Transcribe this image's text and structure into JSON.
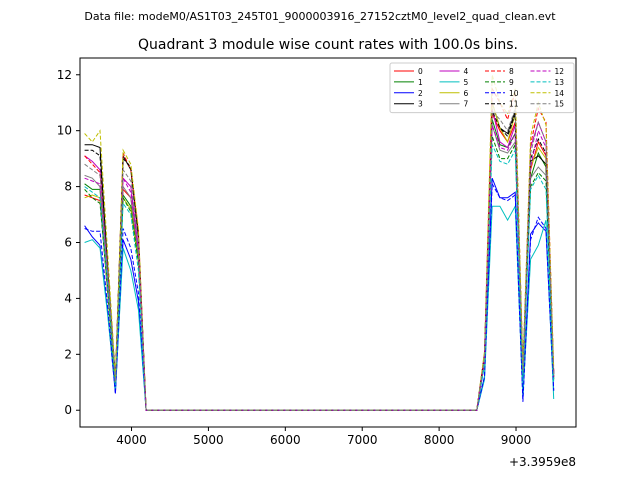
{
  "chart_data": {
    "type": "line",
    "suptitle": "Data file: modeM0/AS1T03_245T01_9000003916_27152cztM0_level2_quad_clean.evt",
    "title": "Quadrant 3 module wise count rates with 100.0s bins.",
    "xlabel": "",
    "ylabel": "",
    "x_offset_label": "+3.3959e8",
    "xlim": [
      3330,
      9780
    ],
    "ylim": [
      -0.6,
      12.6
    ],
    "x_ticks": [
      4000,
      5000,
      6000,
      7000,
      8000,
      9000
    ],
    "x_tick_labels": [
      "4000",
      "5000",
      "6000",
      "7000",
      "8000",
      "9000"
    ],
    "y_ticks": [
      0,
      2,
      4,
      6,
      8,
      10,
      12
    ],
    "y_tick_labels": [
      "0",
      "2",
      "4",
      "6",
      "8",
      "10",
      "12"
    ],
    "legend_position": "top-right",
    "legend_columns": 4,
    "x": [
      3390,
      3490,
      3590,
      3690,
      3790,
      3890,
      3990,
      4090,
      4190,
      4290,
      8490,
      8590,
      8690,
      8790,
      8890,
      8990,
      9090,
      9190,
      9290,
      9390,
      9490
    ],
    "series": [
      {
        "name": "0",
        "color": "#ff0000",
        "dash": "solid",
        "values": [
          7.7,
          7.6,
          7.5,
          4.2,
          0.9,
          7.9,
          7.6,
          5.5,
          0,
          0,
          0,
          1.8,
          10.6,
          10.0,
          9.6,
          10.3,
          1.3,
          8.6,
          9.6,
          9.1,
          1.2
        ]
      },
      {
        "name": "1",
        "color": "#008000",
        "dash": "solid",
        "values": [
          8.1,
          7.9,
          7.9,
          4.5,
          0.9,
          7.7,
          7.3,
          5.4,
          0,
          0,
          0,
          1.7,
          10.4,
          9.5,
          9.4,
          9.9,
          1.2,
          8.3,
          9.2,
          8.7,
          1.1
        ]
      },
      {
        "name": "2",
        "color": "#0000ff",
        "dash": "solid",
        "values": [
          6.6,
          6.2,
          5.9,
          3.5,
          0.6,
          6.1,
          5.4,
          3.9,
          0,
          0,
          0,
          1.2,
          8.3,
          7.6,
          7.6,
          7.8,
          0.4,
          6.3,
          6.7,
          6.4,
          0.7
        ]
      },
      {
        "name": "3",
        "color": "#000000",
        "dash": "solid",
        "values": [
          9.5,
          9.5,
          9.4,
          5.1,
          1.1,
          9.1,
          8.6,
          6.2,
          0,
          0,
          0,
          2.0,
          11.0,
          10.1,
          9.9,
          10.7,
          1.4,
          8.9,
          9.1,
          8.8,
          1.3
        ]
      },
      {
        "name": "4",
        "color": "#bf00bf",
        "dash": "solid",
        "values": [
          9.1,
          8.9,
          8.6,
          4.9,
          1.1,
          8.3,
          8.0,
          5.8,
          0,
          0,
          0,
          1.8,
          10.8,
          9.6,
          9.4,
          10.2,
          1.3,
          9.4,
          10.3,
          9.6,
          1.3
        ]
      },
      {
        "name": "5",
        "color": "#00bfbf",
        "dash": "solid",
        "values": [
          6.0,
          6.1,
          5.8,
          3.4,
          0.7,
          5.8,
          5.0,
          3.6,
          0,
          0,
          0,
          1.1,
          7.3,
          7.3,
          6.8,
          7.3,
          0.5,
          5.4,
          5.9,
          6.8,
          0.4
        ]
      },
      {
        "name": "6",
        "color": "#bfbf00",
        "dash": "solid",
        "values": [
          7.6,
          7.7,
          7.6,
          4.3,
          0.9,
          7.6,
          7.2,
          5.3,
          0,
          0,
          0,
          1.7,
          11.0,
          10.1,
          9.6,
          10.6,
          1.3,
          8.7,
          9.4,
          9.0,
          1.2
        ]
      },
      {
        "name": "7",
        "color": "#808080",
        "dash": "solid",
        "values": [
          8.4,
          8.3,
          8.0,
          4.7,
          1.0,
          8.0,
          7.6,
          5.6,
          0,
          0,
          0,
          1.8,
          10.2,
          9.3,
          9.2,
          9.6,
          1.2,
          8.3,
          8.7,
          8.4,
          1.2
        ]
      },
      {
        "name": "8",
        "color": "#ff0000",
        "dash": "dashed",
        "values": [
          9.1,
          8.8,
          8.5,
          5.0,
          1.1,
          9.2,
          8.6,
          6.4,
          0,
          0,
          0,
          2.0,
          11.5,
          11.0,
          10.4,
          11.4,
          1.5,
          9.5,
          10.8,
          10.3,
          1.4
        ]
      },
      {
        "name": "9",
        "color": "#008000",
        "dash": "dashed",
        "values": [
          7.9,
          7.6,
          7.4,
          4.3,
          0.9,
          7.6,
          7.1,
          5.3,
          0,
          0,
          0,
          1.7,
          9.8,
          9.0,
          9.0,
          9.5,
          1.2,
          8.0,
          8.5,
          8.2,
          1.1
        ]
      },
      {
        "name": "10",
        "color": "#0000ff",
        "dash": "dashed",
        "values": [
          6.5,
          6.4,
          6.4,
          3.7,
          0.6,
          6.5,
          5.8,
          4.2,
          0,
          0,
          0,
          1.2,
          8.1,
          7.6,
          7.5,
          7.7,
          0.3,
          6.1,
          6.9,
          6.5,
          0.7
        ]
      },
      {
        "name": "11",
        "color": "#000000",
        "dash": "dashed",
        "values": [
          9.3,
          9.3,
          9.1,
          5.1,
          1.1,
          9.0,
          8.7,
          6.3,
          0,
          0,
          0,
          2.0,
          10.7,
          10.1,
          9.8,
          10.6,
          1.4,
          9.0,
          9.7,
          9.2,
          1.3
        ]
      },
      {
        "name": "12",
        "color": "#bf00bf",
        "dash": "dashed",
        "values": [
          8.3,
          8.2,
          8.1,
          4.8,
          1.0,
          8.3,
          7.8,
          5.7,
          0,
          0,
          0,
          1.8,
          10.2,
          9.4,
          9.3,
          9.9,
          1.3,
          8.7,
          10.0,
          9.4,
          1.2
        ]
      },
      {
        "name": "13",
        "color": "#00bfbf",
        "dash": "dashed",
        "values": [
          8.0,
          7.8,
          7.6,
          4.4,
          0.9,
          7.4,
          7.0,
          5.0,
          0,
          0,
          0,
          1.6,
          9.5,
          8.9,
          8.8,
          9.3,
          1.1,
          7.9,
          8.4,
          7.9,
          1.0
        ]
      },
      {
        "name": "14",
        "color": "#bfbf00",
        "dash": "dashed",
        "values": [
          9.9,
          9.6,
          10.0,
          5.6,
          1.2,
          9.3,
          8.8,
          6.5,
          0,
          0,
          0,
          2.1,
          12.0,
          11.0,
          10.6,
          11.5,
          1.6,
          9.8,
          11.0,
          10.2,
          1.5
        ]
      },
      {
        "name": "15",
        "color": "#808080",
        "dash": "dashed",
        "values": [
          8.8,
          8.6,
          8.4,
          4.9,
          1.0,
          8.6,
          8.2,
          6.0,
          0,
          0,
          0,
          1.9,
          10.7,
          10.4,
          10.0,
          10.8,
          1.4,
          9.2,
          10.3,
          9.6,
          1.3
        ]
      }
    ]
  }
}
